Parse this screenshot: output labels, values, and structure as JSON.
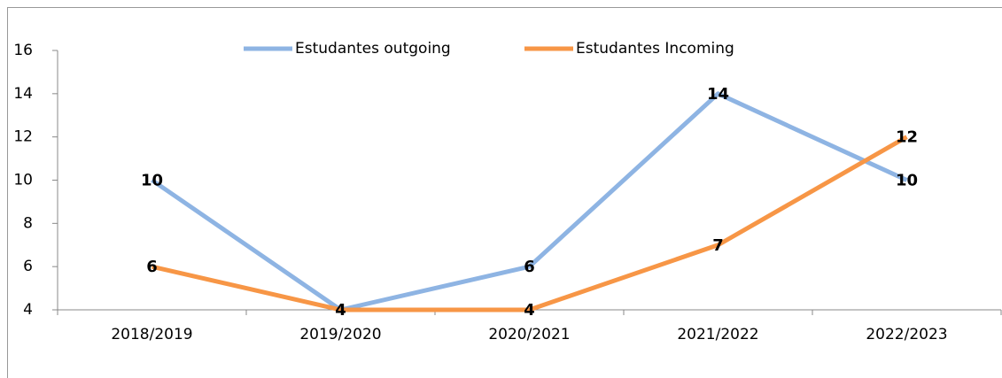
{
  "chart_data": {
    "type": "line",
    "categories": [
      "2018/2019",
      "2019/2020",
      "2020/2021",
      "2021/2022",
      "2022/2023"
    ],
    "series": [
      {
        "name": "Estudantes outgoing",
        "color": "#8eb4e3",
        "values": [
          10,
          4,
          6,
          14,
          10
        ]
      },
      {
        "name": "Estudantes Incoming",
        "color": "#f79646",
        "values": [
          6,
          4,
          4,
          7,
          12
        ]
      }
    ],
    "ylim": [
      4,
      16
    ],
    "yticks": [
      4,
      6,
      8,
      10,
      12,
      14,
      16
    ],
    "grid": false,
    "legend": "top"
  }
}
